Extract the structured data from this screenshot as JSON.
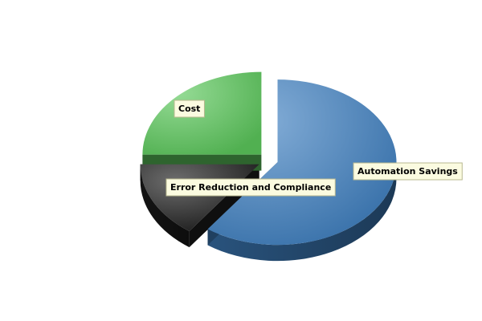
{
  "chart_data": {
    "type": "pie",
    "style": "3d-exploded",
    "legend": "none",
    "categories": [
      "Automation Savings",
      "Error Reduction and Compliance",
      "Cost"
    ],
    "values": [
      60,
      15,
      25
    ],
    "unit": "percent",
    "colors": [
      "#3f7fc0",
      "#1e1e1e",
      "#5cc85c"
    ],
    "label_box_color": "#fbfbe0"
  }
}
